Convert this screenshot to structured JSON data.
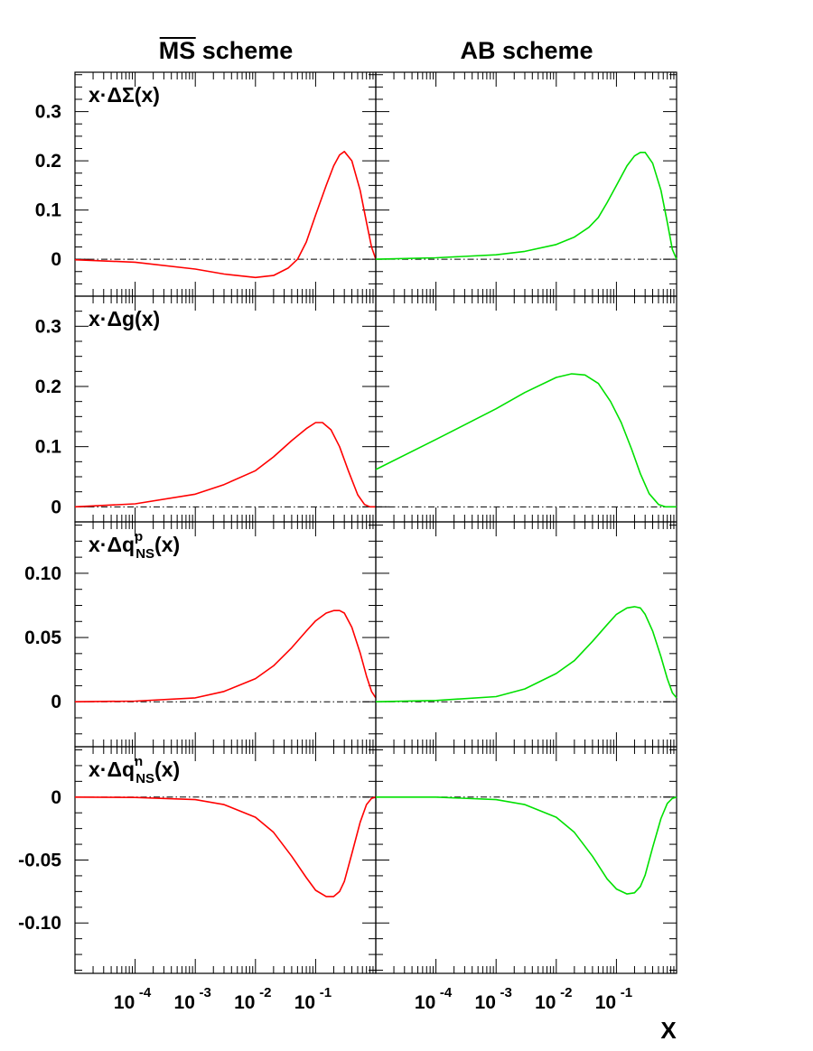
{
  "column_titles": {
    "left": "MS scheme",
    "right": "AB scheme"
  },
  "colors": {
    "ms_curve": "#ff0000",
    "ab_curve": "#00e000",
    "axis": "#000000"
  },
  "chart_data": {
    "type": "line",
    "xlabel": "X",
    "x_scale": "log",
    "xlim": [
      1e-05,
      1
    ],
    "x_ticks": [
      {
        "base": "10",
        "exp": "-4",
        "value": 0.0001
      },
      {
        "base": "10",
        "exp": "-3",
        "value": 0.001
      },
      {
        "base": "10",
        "exp": "-2",
        "value": 0.01
      },
      {
        "base": "10",
        "exp": "-1",
        "value": 0.1
      }
    ],
    "grid": false,
    "panels": [
      {
        "label": "x·ΔΣ(x)",
        "label_main": "x·ΔΣ(x)",
        "label_sup": "",
        "label_sub": "",
        "ylim": [
          -0.075,
          0.38
        ],
        "yticks": [
          {
            "v": 0,
            "t": "0"
          },
          {
            "v": 0.1,
            "t": "0.1"
          },
          {
            "v": 0.2,
            "t": "0.2"
          },
          {
            "v": 0.3,
            "t": "0.3"
          }
        ],
        "series": [
          {
            "scheme": "MS",
            "x": [
              1e-05,
              0.0001,
              0.001,
              0.003,
              0.01,
              0.02,
              0.035,
              0.05,
              0.07,
              0.1,
              0.15,
              0.2,
              0.25,
              0.3,
              0.4,
              0.55,
              0.7,
              0.85,
              1.0
            ],
            "y": [
              -0.001,
              -0.006,
              -0.02,
              -0.03,
              -0.037,
              -0.033,
              -0.018,
              0.0,
              0.035,
              0.09,
              0.15,
              0.19,
              0.212,
              0.219,
              0.2,
              0.14,
              0.075,
              0.025,
              0.0
            ]
          },
          {
            "scheme": "AB",
            "x": [
              1e-05,
              0.0001,
              0.001,
              0.003,
              0.01,
              0.02,
              0.035,
              0.05,
              0.07,
              0.1,
              0.15,
              0.2,
              0.25,
              0.3,
              0.4,
              0.55,
              0.7,
              0.85,
              1.0
            ],
            "y": [
              0.0,
              0.003,
              0.009,
              0.016,
              0.03,
              0.045,
              0.065,
              0.085,
              0.115,
              0.15,
              0.19,
              0.21,
              0.217,
              0.217,
              0.195,
              0.14,
              0.075,
              0.02,
              0.0
            ]
          }
        ]
      },
      {
        "label": "x·Δg(x)",
        "label_main": "x·Δg(x)",
        "label_sup": "",
        "label_sub": "",
        "ylim": [
          -0.025,
          0.35
        ],
        "yticks": [
          {
            "v": 0,
            "t": "0"
          },
          {
            "v": 0.1,
            "t": "0.1"
          },
          {
            "v": 0.2,
            "t": "0.2"
          },
          {
            "v": 0.3,
            "t": "0.3"
          }
        ],
        "series": [
          {
            "scheme": "MS",
            "x": [
              1e-05,
              0.0001,
              0.001,
              0.003,
              0.01,
              0.02,
              0.04,
              0.07,
              0.1,
              0.13,
              0.18,
              0.25,
              0.35,
              0.5,
              0.65,
              0.8,
              1.0
            ],
            "y": [
              0.0,
              0.005,
              0.021,
              0.037,
              0.06,
              0.083,
              0.11,
              0.13,
              0.14,
              0.14,
              0.128,
              0.1,
              0.06,
              0.02,
              0.004,
              0.0,
              0.0
            ]
          },
          {
            "scheme": "AB",
            "x": [
              1e-05,
              0.0001,
              0.001,
              0.003,
              0.01,
              0.018,
              0.03,
              0.05,
              0.08,
              0.12,
              0.18,
              0.25,
              0.35,
              0.5,
              0.65,
              0.8,
              1.0
            ],
            "y": [
              0.062,
              0.112,
              0.163,
              0.19,
              0.215,
              0.221,
              0.219,
              0.205,
              0.175,
              0.14,
              0.095,
              0.055,
              0.022,
              0.004,
              0.0,
              0.0,
              0.0
            ]
          }
        ]
      },
      {
        "label": "x·Δq^p_NS(x)",
        "label_main": "x·Δq",
        "label_sup": "p",
        "label_sub": "NS",
        "label_tail": "(x)",
        "ylim": [
          -0.035,
          0.14
        ],
        "yticks": [
          {
            "v": 0,
            "t": "0"
          },
          {
            "v": 0.05,
            "t": "0.05"
          },
          {
            "v": 0.1,
            "t": "0.10"
          }
        ],
        "series": [
          {
            "scheme": "MS",
            "x": [
              1e-05,
              0.0001,
              0.001,
              0.003,
              0.01,
              0.02,
              0.04,
              0.07,
              0.1,
              0.15,
              0.2,
              0.25,
              0.3,
              0.4,
              0.55,
              0.7,
              0.85,
              1.0
            ],
            "y": [
              0.0,
              0.0005,
              0.003,
              0.008,
              0.018,
              0.028,
              0.042,
              0.055,
              0.063,
              0.069,
              0.071,
              0.071,
              0.069,
              0.058,
              0.038,
              0.02,
              0.008,
              0.003
            ]
          },
          {
            "scheme": "AB",
            "x": [
              1e-05,
              0.0001,
              0.001,
              0.003,
              0.01,
              0.02,
              0.04,
              0.07,
              0.1,
              0.15,
              0.2,
              0.25,
              0.3,
              0.4,
              0.55,
              0.7,
              0.85,
              1.0
            ],
            "y": [
              0.0,
              0.001,
              0.004,
              0.01,
              0.022,
              0.032,
              0.047,
              0.06,
              0.068,
              0.073,
              0.074,
              0.073,
              0.068,
              0.055,
              0.035,
              0.018,
              0.007,
              0.003
            ]
          }
        ]
      },
      {
        "label": "x·Δq^n_NS(x)",
        "label_main": "x·Δq",
        "label_sup": "n",
        "label_sub": "NS",
        "label_tail": "(x)",
        "ylim": [
          -0.14,
          0.04
        ],
        "yticks": [
          {
            "v": 0,
            "t": "0"
          },
          {
            "v": -0.05,
            "t": "-0.05"
          },
          {
            "v": -0.1,
            "t": "-0.10"
          }
        ],
        "series": [
          {
            "scheme": "MS",
            "x": [
              1e-05,
              0.0001,
              0.001,
              0.003,
              0.01,
              0.02,
              0.04,
              0.07,
              0.1,
              0.15,
              0.2,
              0.25,
              0.3,
              0.4,
              0.55,
              0.7,
              0.85,
              1.0
            ],
            "y": [
              0.0,
              -0.0003,
              -0.002,
              -0.006,
              -0.016,
              -0.028,
              -0.047,
              -0.064,
              -0.074,
              -0.079,
              -0.079,
              -0.075,
              -0.067,
              -0.045,
              -0.02,
              -0.006,
              -0.001,
              0.0
            ]
          },
          {
            "scheme": "AB",
            "x": [
              1e-05,
              0.0001,
              0.001,
              0.003,
              0.01,
              0.02,
              0.04,
              0.07,
              0.1,
              0.15,
              0.2,
              0.25,
              0.3,
              0.4,
              0.55,
              0.7,
              0.85,
              1.0
            ],
            "y": [
              0.0,
              0.0,
              -0.002,
              -0.006,
              -0.016,
              -0.028,
              -0.047,
              -0.065,
              -0.073,
              -0.077,
              -0.076,
              -0.071,
              -0.062,
              -0.04,
              -0.017,
              -0.005,
              -0.001,
              0.0
            ]
          }
        ]
      }
    ]
  }
}
